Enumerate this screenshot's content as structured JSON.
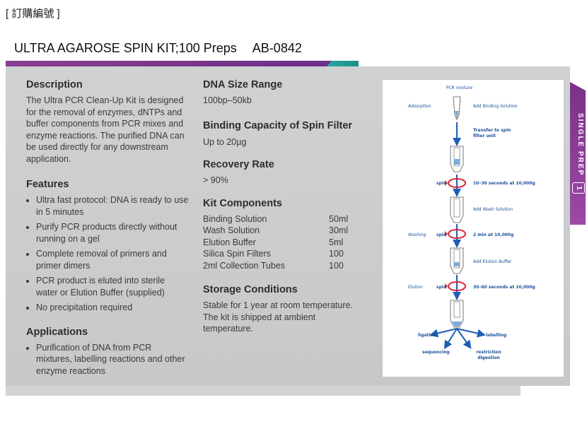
{
  "header": {
    "top_label": "[ 訂購編號 ]",
    "product_name": "ULTRA AGAROSE SPIN KIT;100 Preps",
    "product_code": "AB-0842"
  },
  "side_tab": {
    "text": "SINGLE PREP",
    "number": "1"
  },
  "description": {
    "heading": "Description",
    "text": "The Ultra PCR Clean-Up Kit is designed for the removal of enzymes, dNTPs and buffer components from PCR mixes and enzyme reactions. The purified DNA can be used directly for any downstream application."
  },
  "features": {
    "heading": "Features",
    "items": [
      "Ultra fast protocol: DNA is ready to use in 5 minutes",
      "Purify PCR products directly without running on a gel",
      "Complete removal of primers and primer dimers",
      "PCR product is eluted into sterile water or Elution Buffer (supplied)",
      "No precipitation required"
    ]
  },
  "applications": {
    "heading": "Applications",
    "items": [
      "Purification of DNA from PCR mixtures, labelling reactions and other enzyme reactions"
    ]
  },
  "dna_size": {
    "heading": "DNA Size Range",
    "value": "100bp–50kb"
  },
  "binding": {
    "heading": "Binding Capacity of Spin Filter",
    "value": "Up to 20µg"
  },
  "recovery": {
    "heading": "Recovery Rate",
    "value": "> 90%"
  },
  "kit_components": {
    "heading": "Kit Components",
    "items": [
      {
        "name": "Binding Solution",
        "qty": "50ml"
      },
      {
        "name": "Wash Solution",
        "qty": "30ml"
      },
      {
        "name": "Elution Buffer",
        "qty": "5ml"
      },
      {
        "name": "Silica Spin Filters",
        "qty": "100"
      },
      {
        "name": "2ml Collection Tubes",
        "qty": "100"
      }
    ]
  },
  "storage": {
    "heading": "Storage Conditions",
    "text": "Stable for 1 year at room temperature. The kit is shipped at ambient temperature."
  },
  "diagram": {
    "pcr_mixture": "PCR mixture",
    "adsorption": "Adsorption",
    "add_binding": "Add Binding Solution",
    "transfer": "Transfer to spin filter unit",
    "spin_label": "spin",
    "spin1": "10–30 seconds at 10,000g",
    "add_wash": "Add Wash Solution",
    "washing": "Washing",
    "spin2": "2 min at 10,000g",
    "add_elution": "Add Elution Buffer",
    "elution": "Elution",
    "spin3": "30–60 seconds at 10,000g",
    "ligation": "ligation",
    "labelling": "labelling",
    "sequencing": "sequencing",
    "restriction": "restriction digestion"
  },
  "colors": {
    "purple": "#7b3188",
    "teal": "#2aa6a0",
    "panel": "#cbcdcf",
    "arrow_blue": "#1d5fb4",
    "spin_red": "#d6263b"
  }
}
